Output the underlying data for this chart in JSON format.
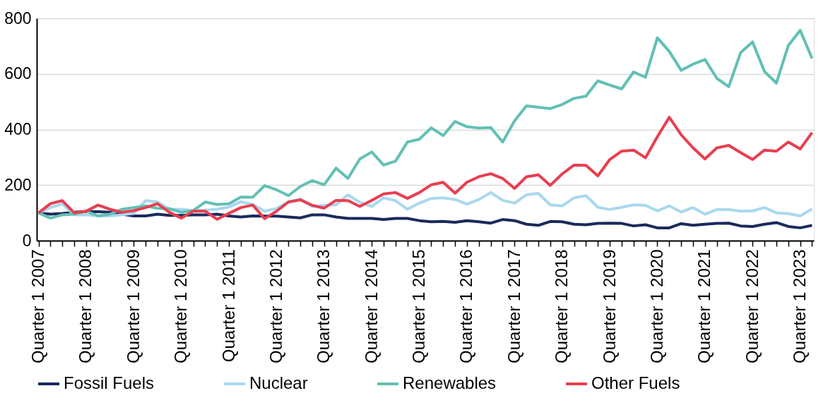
{
  "chart_data": {
    "type": "line",
    "categories": [
      "Quarter 1 2007",
      null,
      null,
      null,
      "Quarter 1 2008",
      null,
      null,
      null,
      "Quarter 1 2009",
      null,
      null,
      null,
      "Quarter 1 2010",
      null,
      null,
      null,
      "Quarter 1 2011",
      null,
      null,
      null,
      "Quarter 1 2012",
      null,
      null,
      null,
      "Quarter 1 2013",
      null,
      null,
      null,
      "Quarter 1 2014",
      null,
      null,
      null,
      "Quarter 1 2015",
      null,
      null,
      null,
      "Quarter 1 2016",
      null,
      null,
      null,
      "Quarter 1 2017",
      null,
      null,
      null,
      "Quarter 1 2018",
      null,
      null,
      null,
      "Quarter 1 2019",
      null,
      null,
      null,
      "Quarter 1 2020",
      null,
      null,
      null,
      "Quarter 1 2021",
      null,
      null,
      null,
      "Quarter 1 2022",
      null,
      null,
      null,
      "Quarter 1 2023",
      null
    ],
    "series": [
      {
        "name": "Fossil Fuels",
        "color": "#1a2a5c",
        "values": [
          100,
          95,
          98,
          102,
          105,
          104,
          102,
          95,
          89,
          89,
          95,
          91,
          91,
          93,
          93,
          95,
          89,
          85,
          89,
          88,
          88,
          85,
          82,
          93,
          93,
          85,
          80,
          80,
          80,
          76,
          80,
          80,
          72,
          68,
          69,
          66,
          72,
          68,
          63,
          76,
          72,
          59,
          55,
          69,
          68,
          59,
          57,
          62,
          63,
          62,
          53,
          57,
          46,
          46,
          61,
          55,
          59,
          62,
          63,
          53,
          51,
          59,
          65,
          51,
          46,
          55
        ]
      },
      {
        "name": "Nuclear",
        "color": "#a9d8ee",
        "values": [
          100,
          119,
          132,
          93,
          93,
          89,
          89,
          93,
          98,
          144,
          139,
          113,
          113,
          108,
          110,
          113,
          121,
          140,
          130,
          106,
          116,
          140,
          149,
          123,
          127,
          129,
          165,
          138,
          123,
          154,
          144,
          113,
          135,
          152,
          154,
          148,
          131,
          148,
          173,
          145,
          135,
          165,
          170,
          129,
          125,
          154,
          162,
          120,
          112,
          120,
          129,
          127,
          107,
          125,
          103,
          119,
          95,
          112,
          112,
          106,
          107,
          119,
          100,
          97,
          89,
          114
        ]
      },
      {
        "name": "Renewables",
        "color": "#62c0b4",
        "values": [
          100,
          81,
          93,
          95,
          106,
          89,
          95,
          113,
          119,
          125,
          116,
          115,
          102,
          108,
          139,
          130,
          133,
          157,
          156,
          198,
          183,
          162,
          195,
          216,
          201,
          261,
          224,
          294,
          319,
          272,
          286,
          355,
          365,
          406,
          378,
          429,
          410,
          405,
          407,
          355,
          431,
          485,
          480,
          475,
          490,
          512,
          520,
          575,
          560,
          546,
          607,
          588,
          730,
          681,
          613,
          635,
          652,
          584,
          554,
          677,
          715,
          609,
          567,
          702,
          757,
          656
        ]
      },
      {
        "name": "Other Fuels",
        "color": "#e83e50",
        "values": [
          100,
          133,
          144,
          100,
          106,
          128,
          113,
          102,
          108,
          119,
          133,
          102,
          81,
          106,
          106,
          77,
          98,
          119,
          128,
          79,
          106,
          139,
          147,
          127,
          117,
          145,
          144,
          123,
          145,
          168,
          173,
          152,
          173,
          201,
          210,
          171,
          210,
          230,
          241,
          224,
          188,
          230,
          237,
          199,
          240,
          272,
          271,
          233,
          292,
          322,
          326,
          298,
          374,
          444,
          381,
          334,
          294,
          334,
          343,
          317,
          292,
          326,
          322,
          355,
          330,
          389
        ]
      }
    ],
    "ylim": [
      0,
      800
    ],
    "yticks": [
      0,
      200,
      400,
      600,
      800
    ],
    "grid": "y",
    "legend": "bottom",
    "line_style": "solid",
    "marker": "none"
  }
}
